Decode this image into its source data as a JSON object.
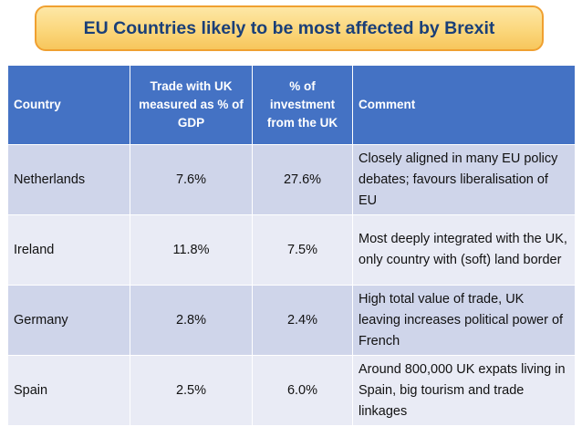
{
  "title": "EU Countries likely to be most affected by Brexit",
  "table": {
    "headers": {
      "country": "Country",
      "trade": "Trade with UK measured as % of GDP",
      "investment": "% of investment from the UK",
      "comment": "Comment"
    },
    "rows": [
      {
        "country": "Netherlands",
        "trade": "7.6%",
        "investment": "27.6%",
        "comment": "Closely aligned in many EU policy debates; favours liberalisation of EU"
      },
      {
        "country": "Ireland",
        "trade": "11.8%",
        "investment": "7.5%",
        "comment": "Most deeply integrated with the UK, only country with (soft) land border"
      },
      {
        "country": "Germany",
        "trade": "2.8%",
        "investment": "2.4%",
        "comment": "High total value of trade, UK leaving increases political power of French"
      },
      {
        "country": "Spain",
        "trade": "2.5%",
        "investment": "6.0%",
        "comment": "Around 800,000 UK expats living in Spain, big tourism and trade linkages"
      }
    ]
  },
  "colors": {
    "header_bg": "#4472c4",
    "row_dark": "#cfd5ea",
    "row_light": "#e9ebf5",
    "title_fill": "#fbd77c",
    "title_border": "#f0a030",
    "title_text": "#1a3f78"
  }
}
